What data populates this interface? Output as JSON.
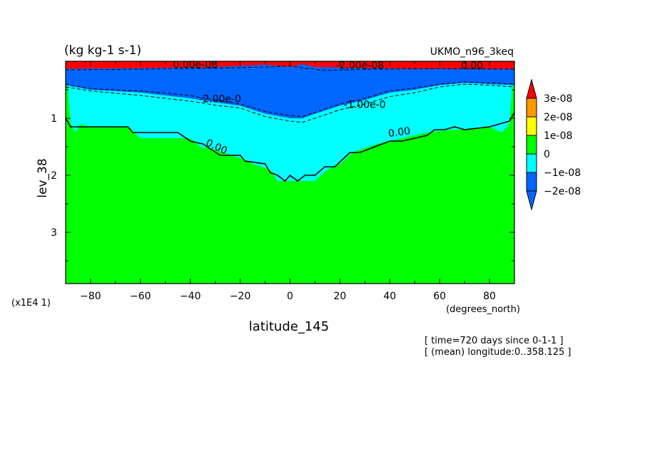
{
  "header": {
    "units": "(kg kg-1 s-1)",
    "model": "UKMO_n96_3keq"
  },
  "footer": {
    "time": "[ time=720 days since 0-1-1 ]",
    "longitude": "[ (mean) longitude:0..358.125 ]"
  },
  "colors": {
    "bin_m3": "#0066ff",
    "bin_m2": "#0066ff",
    "bin_m1": "#00ffff",
    "bin_0": "#00ff00",
    "bin_p1": "#ffff00",
    "bin_p2": "#ff9900",
    "bin_p3": "#ff0000",
    "contour": "#000000"
  },
  "chart_data": {
    "type": "heatmap",
    "title": "(kg kg-1 s-1)",
    "xlabel": "latitude_145",
    "x_units": "(degrees_north)",
    "ylabel": "lev_38",
    "y_multiplier": "(x1E4 1)",
    "xlim": [
      -90,
      90
    ],
    "ylim": [
      0,
      3.9
    ],
    "y_inverted": true,
    "x_ticks": [
      -80,
      -60,
      -40,
      -20,
      0,
      20,
      40,
      60,
      80
    ],
    "y_ticks": [
      1,
      2,
      3
    ],
    "legend": {
      "position": "right",
      "labels": [
        "3e-08",
        "2e-08",
        "1e-08",
        "0",
        "−1e-08",
        "−2e-08"
      ],
      "bins": [
        {
          "range": "> 3e-08",
          "color": "#ff0000"
        },
        {
          "range": "2e-08 .. 3e-08",
          "color": "#ff9900"
        },
        {
          "range": "1e-08 .. 2e-08",
          "color": "#ffff00"
        },
        {
          "range": "0 .. 1e-08",
          "color": "#00ff00"
        },
        {
          "range": "-1e-08 .. 0",
          "color": "#00ffff"
        },
        {
          "range": "-2e-08 .. -1e-08",
          "color": "#0066ff"
        },
        {
          "range": "< -2e-08",
          "color": "#0066ff"
        }
      ]
    },
    "regions": {
      "red_top_base": [
        [
          -90,
          0.13
        ],
        [
          -60,
          0.12
        ],
        [
          -30,
          0.1
        ],
        [
          -10,
          0.06
        ],
        [
          0,
          0.1
        ],
        [
          5,
          0.05
        ],
        [
          10,
          0.1
        ],
        [
          30,
          0.12
        ],
        [
          60,
          0.13
        ],
        [
          90,
          0.13
        ]
      ],
      "blue_base": [
        [
          -90,
          0.42
        ],
        [
          -80,
          0.5
        ],
        [
          -60,
          0.55
        ],
        [
          -40,
          0.65
        ],
        [
          -30,
          0.72
        ],
        [
          -20,
          0.78
        ],
        [
          -10,
          0.92
        ],
        [
          0,
          1.0
        ],
        [
          5,
          1.0
        ],
        [
          10,
          0.92
        ],
        [
          20,
          0.78
        ],
        [
          30,
          0.68
        ],
        [
          40,
          0.55
        ],
        [
          50,
          0.5
        ],
        [
          60,
          0.42
        ],
        [
          70,
          0.38
        ],
        [
          80,
          0.4
        ],
        [
          90,
          0.42
        ]
      ],
      "cyan_base": [
        [
          -90,
          0.0
        ],
        [
          -88,
          1.1
        ],
        [
          -86,
          1.25
        ],
        [
          -84,
          1.1
        ],
        [
          -80,
          1.15
        ],
        [
          -65,
          1.15
        ],
        [
          -60,
          1.35
        ],
        [
          -40,
          1.35
        ],
        [
          -36,
          1.5
        ],
        [
          -30,
          1.55
        ],
        [
          -20,
          1.7
        ],
        [
          -15,
          1.8
        ],
        [
          -8,
          1.9
        ],
        [
          -5,
          2.1
        ],
        [
          10,
          2.1
        ],
        [
          15,
          1.9
        ],
        [
          20,
          1.8
        ],
        [
          25,
          1.6
        ],
        [
          35,
          1.45
        ],
        [
          45,
          1.35
        ],
        [
          55,
          1.25
        ],
        [
          65,
          1.2
        ],
        [
          70,
          1.2
        ],
        [
          80,
          1.15
        ],
        [
          85,
          1.25
        ],
        [
          88,
          1.1
        ],
        [
          90,
          0.0
        ]
      ]
    },
    "contours": [
      {
        "level": "0.00",
        "points": [
          [
            -90,
            1.0
          ],
          [
            -88,
            1.15
          ],
          [
            -80,
            1.15
          ],
          [
            -65,
            1.15
          ],
          [
            -63,
            1.25
          ],
          [
            -45,
            1.25
          ],
          [
            -40,
            1.4
          ],
          [
            -35,
            1.45
          ],
          [
            -28,
            1.65
          ],
          [
            -20,
            1.65
          ],
          [
            -18,
            1.75
          ],
          [
            -10,
            1.8
          ],
          [
            -8,
            1.95
          ],
          [
            -5,
            2.0
          ],
          [
            -2,
            2.1
          ],
          [
            0,
            2.0
          ],
          [
            3,
            2.1
          ],
          [
            6,
            2.0
          ],
          [
            10,
            2.0
          ],
          [
            14,
            1.85
          ],
          [
            18,
            1.85
          ],
          [
            24,
            1.6
          ],
          [
            28,
            1.6
          ],
          [
            34,
            1.5
          ],
          [
            40,
            1.4
          ],
          [
            45,
            1.4
          ],
          [
            55,
            1.3
          ],
          [
            58,
            1.2
          ],
          [
            62,
            1.2
          ],
          [
            66,
            1.15
          ],
          [
            70,
            1.2
          ],
          [
            80,
            1.15
          ],
          [
            88,
            1.05
          ],
          [
            90,
            0.9
          ]
        ]
      },
      {
        "level": "-1.00e-08",
        "points": [
          [
            -90,
            0.45
          ],
          [
            -80,
            0.52
          ],
          [
            -60,
            0.6
          ],
          [
            -40,
            0.7
          ],
          [
            -30,
            0.77
          ],
          [
            -20,
            0.82
          ],
          [
            -10,
            0.97
          ],
          [
            0,
            1.05
          ],
          [
            5,
            1.07
          ],
          [
            10,
            1.0
          ],
          [
            20,
            0.85
          ],
          [
            30,
            0.75
          ],
          [
            40,
            0.62
          ],
          [
            50,
            0.55
          ],
          [
            60,
            0.45
          ],
          [
            70,
            0.4
          ],
          [
            80,
            0.42
          ],
          [
            90,
            0.45
          ]
        ]
      },
      {
        "level": "-2.00e-08",
        "points": [
          [
            -90,
            0.4
          ],
          [
            -80,
            0.48
          ],
          [
            -60,
            0.52
          ],
          [
            -40,
            0.6
          ],
          [
            -30,
            0.68
          ],
          [
            -20,
            0.75
          ],
          [
            -10,
            0.88
          ],
          [
            0,
            0.95
          ],
          [
            5,
            0.97
          ],
          [
            10,
            0.9
          ],
          [
            20,
            0.75
          ],
          [
            30,
            0.65
          ],
          [
            40,
            0.52
          ],
          [
            50,
            0.47
          ],
          [
            60,
            0.4
          ],
          [
            70,
            0.36
          ],
          [
            80,
            0.38
          ],
          [
            90,
            0.4
          ]
        ]
      },
      {
        "level": "-2.00e-08",
        "points": [
          [
            -90,
            0.15
          ],
          [
            -60,
            0.14
          ],
          [
            -30,
            0.12
          ],
          [
            -10,
            0.1
          ],
          [
            0,
            0.08
          ],
          [
            5,
            0.12
          ],
          [
            15,
            0.16
          ],
          [
            30,
            0.14
          ],
          [
            60,
            0.13
          ],
          [
            90,
            0.14
          ]
        ]
      }
    ],
    "contour_labels": [
      {
        "text": "0.00",
        "x": -30,
        "y": 1.55
      },
      {
        "text": "0.00",
        "x": 44,
        "y": 1.3
      },
      {
        "text": "0.00",
        "x": 73,
        "y": 0.13
      },
      {
        "text": "0.00e-08",
        "x": -38,
        "y": 0.12
      },
      {
        "text": "-2.00e-0",
        "x": -28,
        "y": 0.72
      },
      {
        "text": "-1.00e-0",
        "x": 30,
        "y": 0.82
      },
      {
        "text": "-2.00e-08",
        "x": 28,
        "y": 0.13
      }
    ]
  }
}
